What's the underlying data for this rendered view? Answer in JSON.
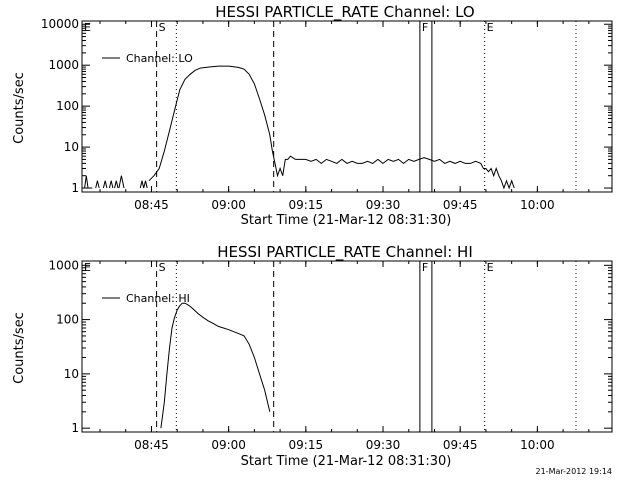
{
  "timestamp": "21-Mar-2012 19:14",
  "chart_data": [
    {
      "type": "line",
      "title": "HESSI PARTICLE_RATE Channel: LO",
      "xlabel": "Start Time (21-Mar-12 08:31:30)",
      "ylabel": "Counts/sec",
      "yscale": "log",
      "xlim": [
        "08:31:30",
        "10:14:30"
      ],
      "ylim": [
        0.8,
        12000
      ],
      "xticks": [
        "08:45",
        "09:00",
        "09:15",
        "09:30",
        "09:45",
        "10:00"
      ],
      "yticks": [
        "1",
        "10",
        "100",
        "1000",
        "10000"
      ],
      "legend": {
        "placement": "top-left"
      },
      "event_markers": [
        {
          "label": "E",
          "time": "08:31:30",
          "style": "none"
        },
        {
          "label": "S",
          "time": "08:46:00",
          "style": "dashed"
        },
        {
          "label": "",
          "time": "08:49:50",
          "style": "dotted"
        },
        {
          "label": "",
          "time": "09:08:45",
          "style": "dashed"
        },
        {
          "label": "F",
          "time": "09:37:10",
          "style": "solid"
        },
        {
          "label": "",
          "time": "09:39:30",
          "style": "solid"
        },
        {
          "label": "E",
          "time": "09:49:45",
          "style": "dotted"
        },
        {
          "label": "",
          "time": "10:07:30",
          "style": "dotted"
        }
      ],
      "series": [
        {
          "name": "Channel: LO",
          "segments": [
            {
              "x": [
                "08:32:00",
                "08:32:20",
                "08:32:40",
                "08:33:10",
                "08:33:30"
              ],
              "y": [
                1,
                2,
                1,
                1,
                1
              ]
            },
            {
              "x": [
                "08:34:10",
                "08:34:30",
                "08:34:50"
              ],
              "y": [
                1,
                1.5,
                1
              ]
            },
            {
              "x": [
                "08:35:40",
                "08:36:00",
                "08:36:20"
              ],
              "y": [
                1,
                1.5,
                1
              ]
            },
            {
              "x": [
                "08:36:50",
                "08:37:10",
                "08:37:30"
              ],
              "y": [
                1,
                1.5,
                1
              ]
            },
            {
              "x": [
                "08:37:50",
                "08:38:10",
                "08:38:30"
              ],
              "y": [
                1,
                1.5,
                1
              ]
            },
            {
              "x": [
                "08:38:40",
                "08:39:10",
                "08:39:40"
              ],
              "y": [
                1,
                2,
                1
              ]
            },
            {
              "x": [
                "08:42:50",
                "08:43:10",
                "08:43:30",
                "08:43:50",
                "08:44:10"
              ],
              "y": [
                1,
                1.5,
                1,
                1.5,
                1
              ]
            },
            {
              "x": [
                "08:44:30",
                "08:45:30",
                "08:46:30",
                "08:47:30",
                "08:48:30",
                "08:49:30",
                "08:50:30",
                "08:51:30",
                "08:52:30",
                "08:53:30",
                "08:54:30",
                "08:56:00",
                "08:58:00",
                "09:00:00",
                "09:01:00",
                "09:02:00",
                "09:03:00",
                "09:04:00",
                "09:05:00",
                "09:06:00",
                "09:07:00",
                "09:08:00",
                "09:08:30",
                "09:09:00",
                "09:09:30",
                "09:10:00",
                "09:10:30",
                "09:11:00",
                "09:11:30",
                "09:12:00",
                "09:13:00",
                "09:14:00",
                "09:15:00",
                "09:16:00",
                "09:17:00",
                "09:18:00",
                "09:19:00",
                "09:20:00",
                "09:21:00",
                "09:22:00",
                "09:23:00",
                "09:24:00",
                "09:25:00",
                "09:26:00",
                "09:27:00",
                "09:28:00",
                "09:29:00",
                "09:30:00",
                "09:31:00",
                "09:32:00",
                "09:33:00",
                "09:34:00",
                "09:35:00",
                "09:36:00",
                "09:37:00",
                "09:38:00",
                "09:39:00",
                "09:40:00",
                "09:41:00",
                "09:42:00",
                "09:43:00",
                "09:44:00",
                "09:45:00",
                "09:46:00",
                "09:47:00",
                "09:48:00",
                "09:49:00",
                "09:49:30",
                "09:50:00",
                "09:50:30",
                "09:51:00",
                "09:51:30",
                "09:52:00",
                "09:52:30",
                "09:53:00",
                "09:53:30",
                "09:54:00",
                "09:54:30",
                "09:55:00",
                "09:55:30"
              ],
              "y": [
                1.5,
                2,
                3,
                8,
                25,
                80,
                250,
                450,
                600,
                750,
                850,
                900,
                950,
                950,
                920,
                880,
                800,
                600,
                350,
                150,
                60,
                20,
                8,
                4,
                2,
                3,
                2,
                5,
                5,
                6,
                5,
                5,
                5,
                4.5,
                5,
                4,
                5,
                4.5,
                4,
                5,
                4,
                4.5,
                4,
                4,
                4.5,
                4,
                5,
                4,
                5,
                4.5,
                5,
                4,
                5,
                4.5,
                5,
                5.5,
                5,
                4.5,
                5,
                4,
                4.5,
                4,
                4.5,
                4,
                4,
                4.5,
                4,
                3,
                3,
                2.5,
                3,
                2,
                3,
                2,
                1.5,
                1,
                1.5,
                1,
                1.5,
                1
              ]
            }
          ]
        }
      ]
    },
    {
      "type": "line",
      "title": "HESSI PARTICLE_RATE Channel: HI",
      "xlabel": "Start Time (21-Mar-12 08:31:30)",
      "ylabel": "Counts/sec",
      "yscale": "log",
      "xlim": [
        "08:31:30",
        "10:14:30"
      ],
      "ylim": [
        0.85,
        1200
      ],
      "xticks": [
        "08:45",
        "09:00",
        "09:15",
        "09:30",
        "09:45",
        "10:00"
      ],
      "yticks": [
        "1",
        "10",
        "100",
        "1000"
      ],
      "legend": {
        "placement": "top-left"
      },
      "event_markers": [
        {
          "label": "E",
          "time": "08:31:30",
          "style": "none"
        },
        {
          "label": "S",
          "time": "08:46:00",
          "style": "dashed"
        },
        {
          "label": "",
          "time": "08:49:50",
          "style": "dotted"
        },
        {
          "label": "",
          "time": "09:08:45",
          "style": "dashed"
        },
        {
          "label": "F",
          "time": "09:37:10",
          "style": "solid"
        },
        {
          "label": "",
          "time": "09:39:30",
          "style": "solid"
        },
        {
          "label": "E",
          "time": "09:49:45",
          "style": "dotted"
        },
        {
          "label": "",
          "time": "10:07:30",
          "style": "dotted"
        }
      ],
      "series": [
        {
          "name": "Channel: HI",
          "segments": [
            {
              "x": [
                "08:46:50",
                "08:47:30",
                "08:48:00",
                "08:48:30",
                "08:49:00",
                "08:49:30",
                "08:50:00",
                "08:50:30",
                "08:51:00",
                "08:51:30",
                "08:52:00",
                "08:52:30",
                "08:53:00",
                "08:54:00",
                "08:55:00",
                "08:56:00",
                "08:57:00",
                "08:58:00",
                "09:00:00",
                "09:02:00",
                "09:03:00",
                "09:04:00",
                "09:05:00",
                "09:06:00",
                "09:07:00",
                "09:08:00"
              ],
              "y": [
                1,
                3,
                10,
                30,
                70,
                110,
                150,
                180,
                200,
                200,
                190,
                175,
                160,
                130,
                110,
                95,
                85,
                75,
                65,
                55,
                50,
                35,
                20,
                10,
                5,
                2
              ]
            }
          ]
        }
      ]
    }
  ]
}
